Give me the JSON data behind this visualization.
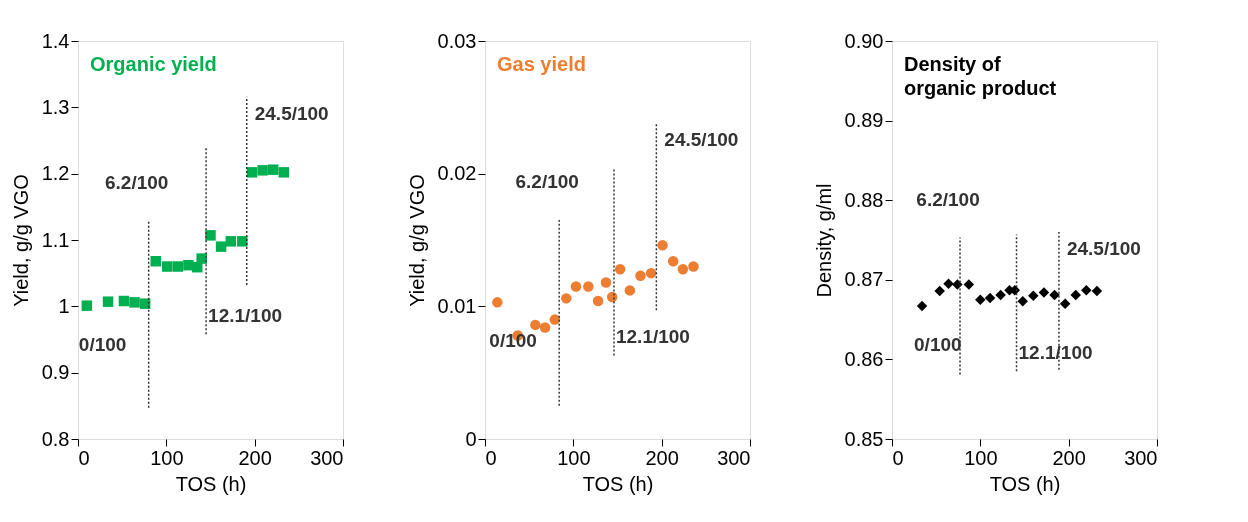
{
  "chart_data": [
    {
      "type": "scatter",
      "title": "Organic yield",
      "xlabel": "TOS (h)",
      "ylabel": "Yield,  g/g VGO",
      "marker": "square",
      "grid": false,
      "xlim": [
        0,
        300
      ],
      "xticks": [
        0,
        100,
        200,
        300
      ],
      "ylim": [
        0.8,
        1.4
      ],
      "yticks": [
        0.8,
        0.9,
        1,
        1.1,
        1.2,
        1.3,
        1.4
      ],
      "series": [
        {
          "color": "#00b050",
          "x": [
            10,
            34,
            52,
            64,
            76,
            88,
            101,
            113,
            125,
            135,
            140,
            150,
            162,
            173,
            186,
            197,
            209,
            221,
            233
          ],
          "values": [
            1.001,
            1.007,
            1.008,
            1.006,
            1.004,
            1.068,
            1.06,
            1.06,
            1.062,
            1.059,
            1.072,
            1.107,
            1.09,
            1.098,
            1.098,
            1.202,
            1.205,
            1.206,
            1.202
          ]
        },
        {
          "type": "line",
          "name": "6.2/100",
          "marker": "none",
          "line_style": "dotted",
          "color": "#333333",
          "x": [
            80,
            80
          ],
          "values": [
            0.847,
            1.129
          ]
        },
        {
          "type": "line",
          "name": "12.1/100",
          "marker": "none",
          "line_style": "dotted",
          "color": "#333333",
          "x": [
            145,
            145
          ],
          "values": [
            0.958,
            1.241
          ]
        },
        {
          "type": "line",
          "name": "24.5/100",
          "marker": "none",
          "line_style": "dotted",
          "color": "#333333",
          "x": [
            191,
            191
          ],
          "values": [
            1.032,
            1.316
          ]
        }
      ],
      "annotations": [
        "0/100"
      ]
    },
    {
      "type": "scatter",
      "title": "Gas yield",
      "xlabel": "TOS (h)",
      "ylabel": "Yield,  g/g VGO",
      "marker": "circle",
      "grid": false,
      "xlim": [
        0,
        300
      ],
      "xticks": [
        0,
        100,
        200,
        300
      ],
      "ylim": [
        0,
        0.03
      ],
      "yticks": [
        0,
        0.01,
        0.02,
        0.03
      ],
      "series": [
        {
          "color": "#ed7d31",
          "x": [
            14,
            37,
            57,
            68,
            79,
            92,
            103,
            117,
            128,
            137,
            144,
            153,
            164,
            176,
            188,
            201,
            213,
            224,
            236
          ],
          "values": [
            0.0103,
            0.0078,
            0.0086,
            0.0084,
            0.009,
            0.0106,
            0.0115,
            0.0115,
            0.0104,
            0.0118,
            0.0107,
            0.0128,
            0.0112,
            0.0123,
            0.0125,
            0.0146,
            0.0134,
            0.0128,
            0.013
          ]
        },
        {
          "type": "line",
          "name": "6.2/100",
          "marker": "none",
          "line_style": "dotted",
          "color": "#333333",
          "x": [
            84,
            84
          ],
          "values": [
            0.0025,
            0.0165
          ]
        },
        {
          "type": "line",
          "name": "12.1/100",
          "marker": "none",
          "line_style": "dotted",
          "color": "#333333",
          "x": [
            146,
            146
          ],
          "values": [
            0.0063,
            0.0204
          ]
        },
        {
          "type": "line",
          "name": "24.5/100",
          "marker": "none",
          "line_style": "dotted",
          "color": "#333333",
          "x": [
            194,
            194
          ],
          "values": [
            0.0097,
            0.0238
          ]
        }
      ],
      "annotations": [
        "0/100"
      ]
    },
    {
      "type": "scatter",
      "title": "Density of\norganic product",
      "xlabel": "TOS (h)",
      "ylabel": "Density, g/ml",
      "marker": "diamond",
      "grid": false,
      "xlim": [
        0,
        300
      ],
      "xticks": [
        0,
        100,
        200,
        300
      ],
      "ylim": [
        0.85,
        0.9
      ],
      "yticks": [
        0.85,
        0.86,
        0.87,
        0.88,
        0.89,
        {
          "value": 0.9,
          "label": "0.90"
        }
      ],
      "series": [
        {
          "color": "#000000",
          "x": [
            34,
            54,
            64,
            74,
            87,
            100,
            111,
            123,
            133,
            139,
            148,
            160,
            172,
            184,
            196,
            208,
            220,
            232
          ],
          "values": [
            0.8667,
            0.8686,
            0.8695,
            0.8694,
            0.8694,
            0.8675,
            0.8677,
            0.8681,
            0.8687,
            0.8687,
            0.8673,
            0.868,
            0.8684,
            0.8681,
            0.867,
            0.8681,
            0.8687,
            0.8686
          ]
        },
        {
          "type": "line",
          "name": "6.2/100",
          "marker": "none",
          "line_style": "dotted",
          "color": "#333333",
          "x": [
            77,
            77
          ],
          "values": [
            0.8581,
            0.8753
          ]
        },
        {
          "type": "line",
          "name": "12.1/100",
          "marker": "none",
          "line_style": "dotted",
          "color": "#333333",
          "x": [
            141,
            141
          ],
          "values": [
            0.8585,
            0.8757
          ]
        },
        {
          "type": "line",
          "name": "24.5/100",
          "marker": "none",
          "line_style": "dotted",
          "color": "#333333",
          "x": [
            189,
            189
          ],
          "values": [
            0.8587,
            0.876
          ]
        }
      ],
      "annotations": [
        "0/100"
      ]
    }
  ]
}
